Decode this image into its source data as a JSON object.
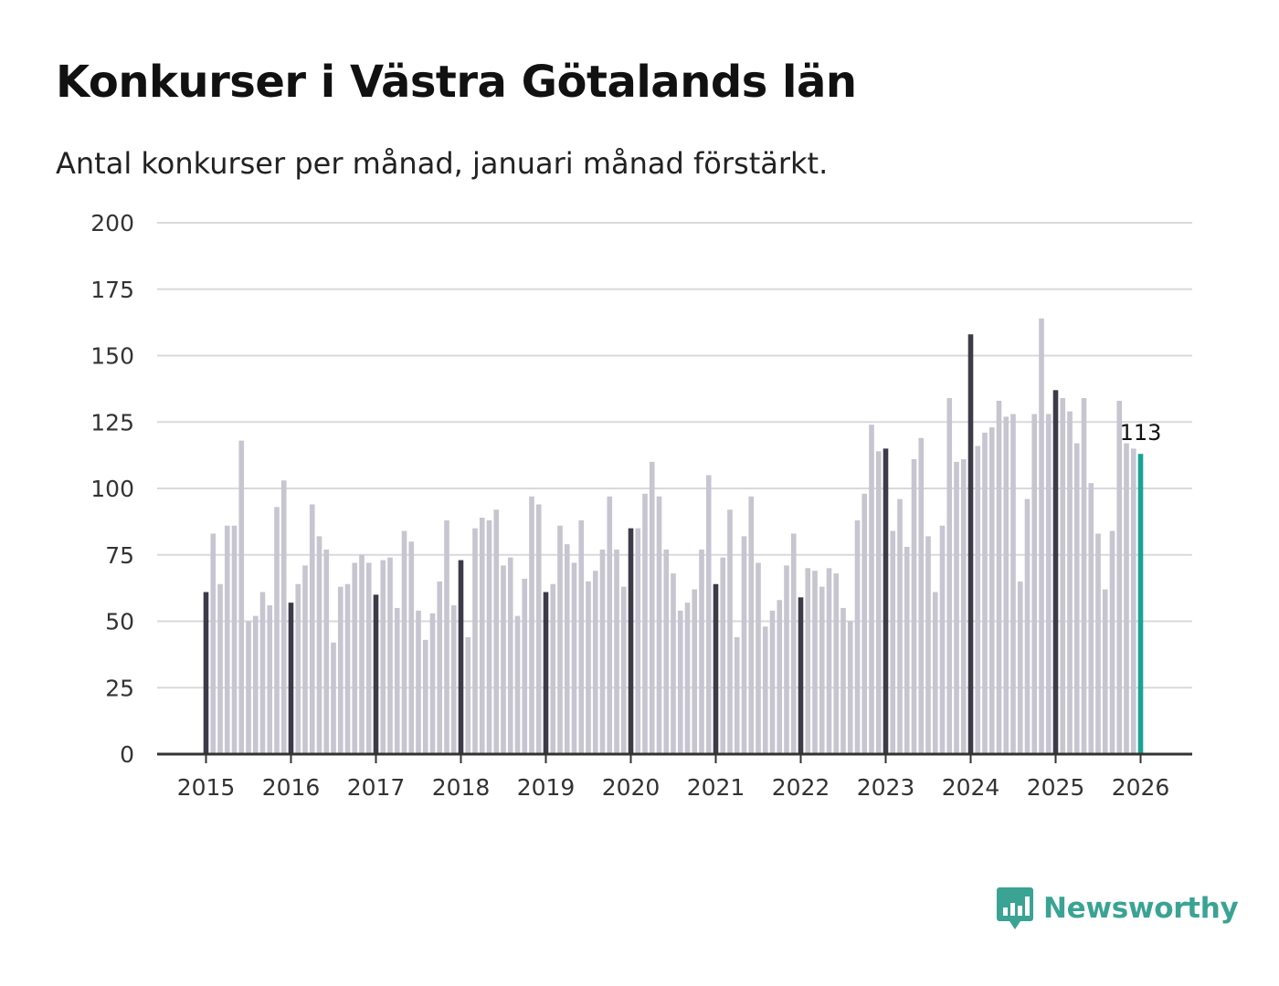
{
  "chart_data": {
    "type": "bar",
    "title": "Konkurser i Västra Götalands län",
    "subtitle": "Antal konkurser per månad, januari månad förstärkt.",
    "xlabel": "",
    "ylabel": "",
    "ylim": [
      0,
      200
    ],
    "yticks": [
      "0",
      "25",
      "50",
      "75",
      "100",
      "125",
      "150",
      "175",
      "200"
    ],
    "xticks": [
      "2015",
      "2016",
      "2017",
      "2018",
      "2019",
      "2020",
      "2021",
      "2022",
      "2023",
      "2024",
      "2025",
      "2026"
    ],
    "grid": true,
    "colors": {
      "january": "#3c3b47",
      "other": "#c6c5d0",
      "latest": "#19a394",
      "grid": "#d9d9de",
      "axis": "#333333"
    },
    "last_value_label": "113",
    "series": [
      {
        "name": "Antal konkurser",
        "start": "2015-01",
        "values": [
          61,
          83,
          64,
          86,
          86,
          118,
          50,
          52,
          61,
          56,
          93,
          103,
          57,
          64,
          71,
          94,
          82,
          77,
          42,
          63,
          64,
          72,
          75,
          72,
          60,
          73,
          74,
          55,
          84,
          80,
          54,
          43,
          53,
          65,
          88,
          56,
          73,
          44,
          85,
          89,
          88,
          92,
          71,
          74,
          52,
          66,
          97,
          94,
          61,
          64,
          86,
          79,
          72,
          88,
          65,
          69,
          77,
          97,
          77,
          63,
          85,
          85,
          98,
          110,
          97,
          77,
          68,
          54,
          57,
          62,
          77,
          105,
          64,
          74,
          92,
          44,
          82,
          97,
          72,
          48,
          54,
          58,
          71,
          83,
          59,
          70,
          69,
          63,
          70,
          68,
          55,
          50,
          88,
          98,
          124,
          114,
          115,
          84,
          96,
          78,
          111,
          119,
          82,
          61,
          86,
          134,
          110,
          111,
          158,
          116,
          121,
          123,
          133,
          127,
          128,
          65,
          96,
          128,
          164,
          128,
          137,
          134,
          129,
          117,
          134,
          102,
          83,
          62,
          84,
          133,
          117,
          115,
          113
        ]
      }
    ]
  },
  "branding": {
    "name": "Newsworthy",
    "icon": "newsworthy-logo-icon"
  }
}
